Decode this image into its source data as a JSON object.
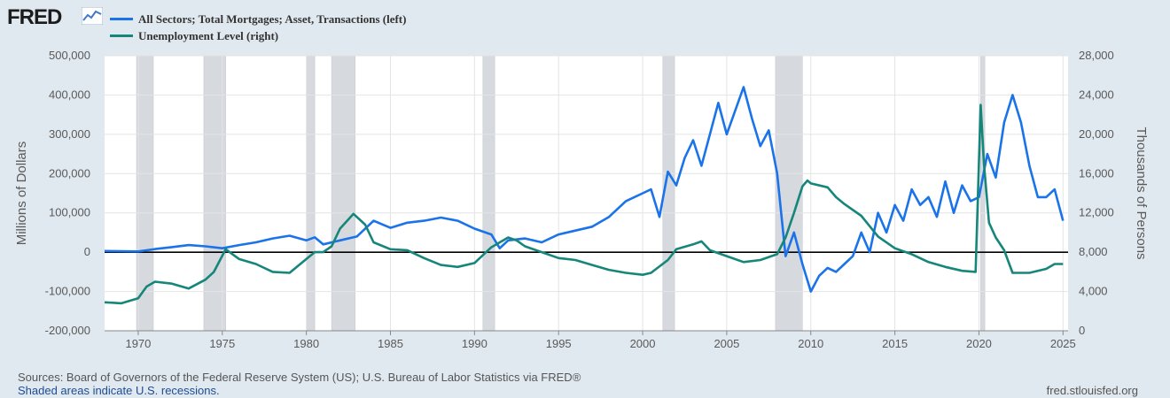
{
  "brand": {
    "logo_text": "FRED",
    "logo_icon": "line-chart-icon"
  },
  "legend": [
    {
      "label": "All Sectors; Total Mortgages; Asset, Transactions (left)",
      "color": "#1a73e8"
    },
    {
      "label": "Unemployment Level (right)",
      "color": "#16867a"
    }
  ],
  "footer": {
    "sources": "Sources: Board of Governors of the Federal Reserve System (US); U.S. Bureau of Labor Statistics via FRED®",
    "note": "Shaded areas indicate U.S. recessions.",
    "url": "fred.stlouisfed.org"
  },
  "chart_data": {
    "type": "line",
    "title": "",
    "xlabel": "",
    "ylabel": "Millions of Dollars",
    "y2label": "Thousands of Persons",
    "xlim": [
      1968.0,
      2025.3
    ],
    "ylim": [
      -200000,
      500000
    ],
    "y2lim": [
      0,
      28000
    ],
    "x_ticks": [
      1970,
      1975,
      1980,
      1985,
      1990,
      1995,
      2000,
      2005,
      2010,
      2015,
      2020,
      2025
    ],
    "y_ticks": [
      "500,000",
      "400,000",
      "300,000",
      "200,000",
      "100,000",
      "0",
      "-100,000",
      "-200,000"
    ],
    "y_tick_values": [
      500000,
      400000,
      300000,
      200000,
      100000,
      0,
      -100000,
      -200000
    ],
    "y2_ticks": [
      "28,000",
      "24,000",
      "20,000",
      "16,000",
      "12,000",
      "8,000",
      "4,000",
      "0"
    ],
    "y2_tick_values": [
      28000,
      24000,
      20000,
      16000,
      12000,
      8000,
      4000,
      0
    ],
    "recessions": [
      [
        1969.9,
        1970.9
      ],
      [
        1973.9,
        1975.2
      ],
      [
        1980.0,
        1980.5
      ],
      [
        1981.5,
        1982.9
      ],
      [
        1990.5,
        1991.2
      ],
      [
        2001.2,
        2001.9
      ],
      [
        2007.9,
        2009.5
      ],
      [
        2020.1,
        2020.35
      ]
    ],
    "series": [
      {
        "name": "All Sectors; Total Mortgages; Asset, Transactions",
        "axis": "left",
        "color": "#1a73e8",
        "x": [
          1968,
          1970,
          1971,
          1972,
          1973,
          1974,
          1975,
          1976,
          1977,
          1978,
          1979,
          1980,
          1980.5,
          1981,
          1982,
          1983,
          1984,
          1985,
          1986,
          1987,
          1988,
          1989,
          1990,
          1991,
          1991.5,
          1992,
          1993,
          1994,
          1995,
          1996,
          1997,
          1998,
          1999,
          2000,
          2000.5,
          2001,
          2001.5,
          2002,
          2002.5,
          2003,
          2003.5,
          2004,
          2004.5,
          2005,
          2005.5,
          2006,
          2006.5,
          2007,
          2007.5,
          2008,
          2008.5,
          2009,
          2009.5,
          2010,
          2010.5,
          2011,
          2011.5,
          2012,
          2012.5,
          2013,
          2013.5,
          2014,
          2014.5,
          2015,
          2015.5,
          2016,
          2016.5,
          2017,
          2017.5,
          2018,
          2018.5,
          2019,
          2019.5,
          2020,
          2020.5,
          2021,
          2021.5,
          2022,
          2022.5,
          2023,
          2023.5,
          2024,
          2024.5,
          2025
        ],
        "values": [
          3000,
          2000,
          8000,
          13000,
          18000,
          15000,
          10000,
          18000,
          25000,
          35000,
          42000,
          30000,
          38000,
          20000,
          30000,
          40000,
          80000,
          62000,
          75000,
          80000,
          88000,
          80000,
          60000,
          45000,
          10000,
          30000,
          35000,
          25000,
          45000,
          55000,
          65000,
          90000,
          130000,
          150000,
          160000,
          90000,
          205000,
          170000,
          240000,
          285000,
          220000,
          300000,
          380000,
          300000,
          360000,
          420000,
          340000,
          270000,
          310000,
          200000,
          -10000,
          50000,
          -30000,
          -100000,
          -60000,
          -40000,
          -50000,
          -30000,
          -10000,
          50000,
          0,
          100000,
          50000,
          120000,
          80000,
          160000,
          120000,
          140000,
          90000,
          180000,
          100000,
          170000,
          130000,
          140000,
          250000,
          190000,
          330000,
          400000,
          330000,
          220000,
          140000,
          140000,
          160000,
          80000
        ]
      },
      {
        "name": "Unemployment Level",
        "axis": "right",
        "color": "#16867a",
        "x": [
          1968,
          1969,
          1970,
          1970.5,
          1971,
          1972,
          1973,
          1974,
          1974.5,
          1975.2,
          1976,
          1977,
          1978,
          1979,
          1980,
          1980.5,
          1981,
          1981.5,
          1982,
          1982.8,
          1983.5,
          1984,
          1985,
          1986,
          1987,
          1988,
          1989,
          1990,
          1991,
          1992,
          1992.5,
          1993,
          1994,
          1995,
          1996,
          1997,
          1998,
          1999,
          2000,
          2000.5,
          2001.5,
          2002,
          2003,
          2003.5,
          2004,
          2005,
          2006,
          2007,
          2008,
          2008.5,
          2009,
          2009.5,
          2009.8,
          2010,
          2011,
          2011.5,
          2012,
          2013,
          2014,
          2015,
          2016,
          2017,
          2018,
          2019,
          2019.8,
          2020.1,
          2020.3,
          2020.6,
          2021,
          2021.5,
          2022,
          2023,
          2024,
          2024.5,
          2025
        ],
        "values": [
          2900,
          2800,
          3300,
          4500,
          5000,
          4800,
          4300,
          5200,
          6000,
          8300,
          7300,
          6800,
          6000,
          5900,
          7300,
          8000,
          8000,
          8600,
          10400,
          11900,
          10800,
          9000,
          8300,
          8200,
          7400,
          6700,
          6500,
          6900,
          8500,
          9500,
          9200,
          8600,
          8000,
          7400,
          7200,
          6700,
          6200,
          5900,
          5700,
          5900,
          7200,
          8300,
          8800,
          9100,
          8200,
          7600,
          7000,
          7200,
          7800,
          9500,
          12000,
          14700,
          15300,
          15000,
          14600,
          13600,
          12900,
          11700,
          9600,
          8400,
          7800,
          7000,
          6500,
          6100,
          6000,
          23000,
          17000,
          11000,
          9500,
          8200,
          5900,
          5900,
          6300,
          6800,
          6800
        ]
      }
    ]
  }
}
